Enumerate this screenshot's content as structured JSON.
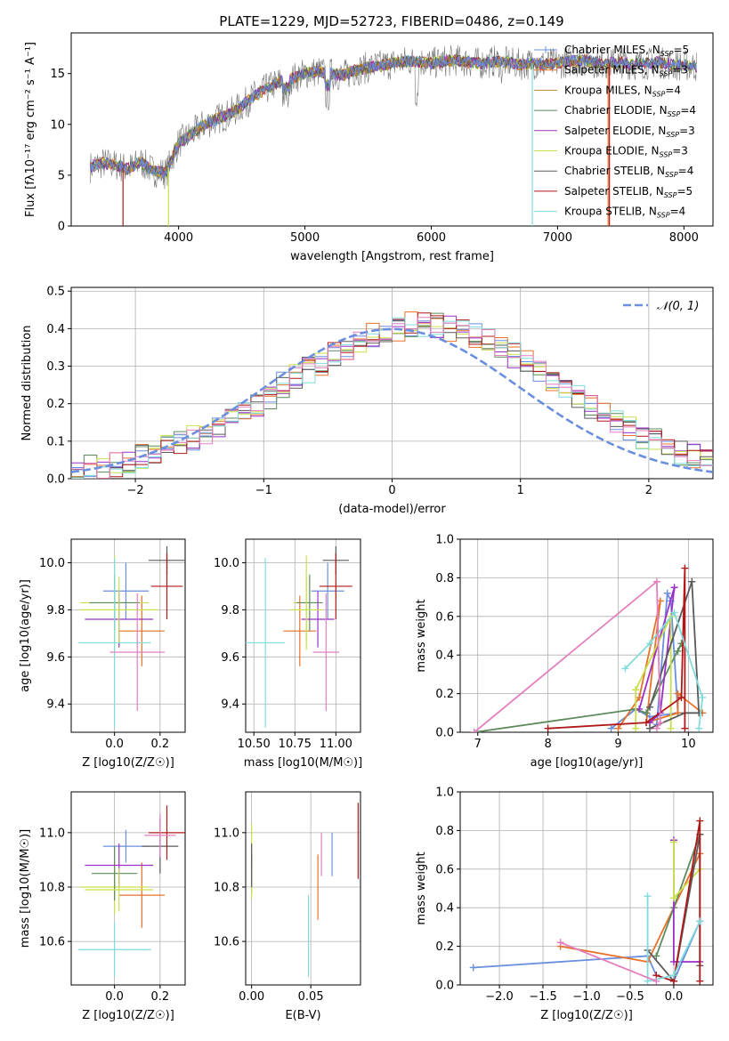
{
  "figure_title": "PLATE=1229, MJD=52723, FIBERID=0486, z=0.149",
  "colors": {
    "model_palette": [
      "#6a8fde",
      "#e8712a",
      "#b7892e",
      "#5d8a5d",
      "#9b30c8",
      "#c8e04a",
      "#5a5a5a",
      "#b01818",
      "#80dcdc"
    ],
    "spectrum_data": "#777777",
    "normal_curve": "#6a8fde",
    "hist_colors": [
      "#6a8fde",
      "#e8712a",
      "#5d8a5d",
      "#9b30c8",
      "#c8e04a",
      "#5a5a5a",
      "#b01818",
      "#80dcdc",
      "#e37fbf"
    ]
  },
  "chart_data": [
    {
      "id": "spectrum",
      "type": "line",
      "title": "PLATE=1229, MJD=52723, FIBERID=0486, z=0.149",
      "xlabel": "wavelength [Angstrom, rest frame]",
      "ylabel": "Flux [fλ10⁻¹⁷ erg cm⁻² s⁻¹ A⁻¹]",
      "xlim": [
        3150,
        8230
      ],
      "ylim": [
        0,
        19
      ],
      "xticks": [
        4000,
        5000,
        6000,
        7000,
        8000
      ],
      "yticks": [
        0,
        5,
        10,
        15
      ],
      "grid": false,
      "legend_position": "top-right",
      "continuum_x": [
        3300,
        3400,
        3500,
        3600,
        3700,
        3800,
        3900,
        4000,
        4100,
        4200,
        4300,
        4400,
        4500,
        4600,
        4700,
        4800,
        4900,
        5000,
        5100,
        5200,
        5300,
        5400,
        5500,
        5600,
        5700,
        5800,
        5900,
        6000,
        6100,
        6200,
        6300,
        6400,
        6500,
        6600,
        6700,
        6800,
        6900,
        7000,
        7100,
        7200,
        7300,
        7400,
        7500,
        7600,
        7700,
        7800,
        7900,
        8000,
        8100
      ],
      "continuum_y": [
        5.8,
        6.2,
        6.0,
        5.6,
        6.3,
        5.4,
        5.2,
        8.2,
        9.0,
        10.0,
        10.5,
        11.0,
        11.8,
        12.8,
        13.5,
        14.2,
        14.5,
        15.0,
        15.2,
        15.0,
        14.8,
        15.3,
        15.6,
        15.8,
        16.0,
        16.2,
        16.2,
        16.0,
        16.2,
        16.3,
        16.1,
        16.0,
        16.2,
        16.1,
        15.9,
        16.0,
        15.9,
        16.0,
        16.2,
        16.3,
        16.1,
        16.0,
        16.1,
        15.9,
        16.0,
        16.1,
        15.9,
        15.8,
        15.7
      ],
      "series": [
        {
          "name": "Chabrier MILES, N_SSP=5",
          "label_main": "Chabrier MILES, N",
          "label_sub": "SSP",
          "label_end": "=5",
          "style": "plus"
        },
        {
          "name": "Salpeter MILES, N_SSP=3",
          "label_main": "Salpeter MILES, N",
          "label_sub": "SSP",
          "label_end": "=3"
        },
        {
          "name": "Kroupa MILES, N_SSP=4",
          "label_main": "Kroupa MILES, N",
          "label_sub": "SSP",
          "label_end": "=4"
        },
        {
          "name": "Chabrier ELODIE, N_SSP=4",
          "label_main": "Chabrier ELODIE, N",
          "label_sub": "SSP",
          "label_end": "=4"
        },
        {
          "name": "Salpeter ELODIE, N_SSP=3",
          "label_main": "Salpeter ELODIE, N",
          "label_sub": "SSP",
          "label_end": "=3"
        },
        {
          "name": "Kroupa ELODIE, N_SSP=3",
          "label_main": "Kroupa ELODIE, N",
          "label_sub": "SSP",
          "label_end": "=3"
        },
        {
          "name": "Chabrier STELIB, N_SSP=4",
          "label_main": "Chabrier STELIB, N",
          "label_sub": "SSP",
          "label_end": "=4"
        },
        {
          "name": "Salpeter STELIB, N_SSP=5",
          "label_main": "Salpeter STELIB, N",
          "label_sub": "SSP",
          "label_end": "=5"
        },
        {
          "name": "Kroupa STELIB, N_SSP=4",
          "label_main": "Kroupa STELIB, N",
          "label_sub": "SSP",
          "label_end": "=4"
        }
      ]
    },
    {
      "id": "residuals",
      "type": "bar",
      "xlabel": "(data-model)/error",
      "ylabel": "Normed distribution",
      "xlim": [
        -2.5,
        2.5
      ],
      "ylim": [
        0,
        0.51
      ],
      "xticks": [
        -2,
        -1,
        0,
        1,
        2
      ],
      "yticks": [
        0.0,
        0.1,
        0.2,
        0.3,
        0.4,
        0.5
      ],
      "grid": true,
      "legend_position": "top-right",
      "legend": {
        "label": "𝒩(0, 1)"
      },
      "bin_edges_start": -2.5,
      "bin_width": 0.1,
      "base_values": [
        0.02,
        0.03,
        0.03,
        0.04,
        0.05,
        0.06,
        0.07,
        0.09,
        0.1,
        0.11,
        0.12,
        0.14,
        0.16,
        0.18,
        0.2,
        0.22,
        0.25,
        0.27,
        0.29,
        0.31,
        0.33,
        0.35,
        0.36,
        0.38,
        0.39,
        0.4,
        0.41,
        0.41,
        0.41,
        0.4,
        0.4,
        0.38,
        0.37,
        0.35,
        0.33,
        0.31,
        0.29,
        0.26,
        0.24,
        0.22,
        0.19,
        0.17,
        0.15,
        0.13,
        0.11,
        0.1,
        0.08,
        0.07,
        0.06,
        0.05
      ],
      "curve": "normal(0,1)"
    },
    {
      "id": "age_vs_Z",
      "type": "scatter",
      "xlabel": "Z [log10(Z/Z☉)]",
      "ylabel": "age  [log10(age/yr)]",
      "xlim": [
        -0.19,
        0.31
      ],
      "ylim": [
        9.28,
        10.1
      ],
      "xticks": [
        0.0,
        0.2
      ],
      "yticks": [
        9.4,
        9.6,
        9.8,
        10.0
      ],
      "grid": true,
      "points": [
        {
          "x": 0.05,
          "y": 9.88,
          "xerr": 0.1,
          "yerr": 0.12,
          "c": 0
        },
        {
          "x": 0.12,
          "y": 9.71,
          "xerr": 0.1,
          "yerr": 0.15,
          "c": 1
        },
        {
          "x": 0.0,
          "y": 9.83,
          "xerr": 0.15,
          "yerr": 0.2,
          "c": 2
        },
        {
          "x": 0.0,
          "y": 9.83,
          "xerr": 0.11,
          "yerr": 0.12,
          "c": 3
        },
        {
          "x": 0.02,
          "y": 9.76,
          "xerr": 0.15,
          "yerr": 0.12,
          "c": 4
        },
        {
          "x": 0.02,
          "y": 9.8,
          "xerr": 0.17,
          "yerr": 0.14,
          "c": 5
        },
        {
          "x": 0.23,
          "y": 10.01,
          "xerr": 0.08,
          "yerr": 0.06,
          "c": 6
        },
        {
          "x": 0.23,
          "y": 9.9,
          "xerr": 0.07,
          "yerr": 0.14,
          "c": 7
        },
        {
          "x": 0.0,
          "y": 9.66,
          "xerr": 0.16,
          "yerr": 0.36,
          "c": 8
        },
        {
          "x": 0.1,
          "y": 9.62,
          "xerr": 0.12,
          "yerr": 0.25,
          "c": 9
        }
      ]
    },
    {
      "id": "age_vs_mass",
      "type": "scatter",
      "xlabel": "mass [log10(M/M☉)]",
      "ylabel": "",
      "xlim": [
        10.45,
        11.15
      ],
      "ylim": [
        9.28,
        10.1
      ],
      "xticks": [
        10.5,
        10.75,
        11.0
      ],
      "yticks": [
        9.4,
        9.6,
        9.8,
        10.0
      ],
      "grid": true,
      "points": [
        {
          "x": 10.95,
          "y": 9.88,
          "xerr": 0.1,
          "yerr": 0.12,
          "c": 0
        },
        {
          "x": 10.78,
          "y": 9.71,
          "xerr": 0.1,
          "yerr": 0.15,
          "c": 1
        },
        {
          "x": 10.82,
          "y": 9.83,
          "xerr": 0.08,
          "yerr": 0.2,
          "c": 2
        },
        {
          "x": 10.84,
          "y": 9.83,
          "xerr": 0.08,
          "yerr": 0.12,
          "c": 3
        },
        {
          "x": 10.89,
          "y": 9.76,
          "xerr": 0.1,
          "yerr": 0.12,
          "c": 4
        },
        {
          "x": 10.82,
          "y": 9.8,
          "xerr": 0.1,
          "yerr": 0.14,
          "c": 5
        },
        {
          "x": 11.0,
          "y": 10.01,
          "xerr": 0.08,
          "yerr": 0.06,
          "c": 6
        },
        {
          "x": 11.0,
          "y": 9.9,
          "xerr": 0.1,
          "yerr": 0.14,
          "c": 7
        },
        {
          "x": 10.57,
          "y": 9.66,
          "xerr": 0.12,
          "yerr": 0.36,
          "c": 8
        },
        {
          "x": 10.94,
          "y": 9.62,
          "xerr": 0.08,
          "yerr": 0.25,
          "c": 9
        }
      ]
    },
    {
      "id": "weight_vs_age",
      "type": "line",
      "xlabel": "age  [log10(age/yr)]",
      "ylabel": "mass weight",
      "xlim": [
        6.75,
        10.35
      ],
      "ylim": [
        0,
        1
      ],
      "xticks": [
        7,
        8,
        9,
        10
      ],
      "yticks": [
        0.0,
        0.2,
        0.4,
        0.6,
        0.8,
        1.0
      ],
      "grid": true,
      "series": [
        {
          "c": 0,
          "x": [
            8.9,
            9.25,
            9.45,
            9.85,
            9.75,
            9.7,
            9.55
          ],
          "y": [
            0.02,
            0.12,
            0.08,
            0.1,
            0.68,
            0.72,
            0.04
          ]
        },
        {
          "c": 1,
          "x": [
            9.0,
            9.3,
            9.6,
            9.4,
            9.85,
            9.85,
            10.2
          ],
          "y": [
            0.02,
            0.18,
            0.68,
            0.05,
            0.1,
            0.2,
            0.1
          ]
        },
        {
          "c": 3,
          "x": [
            6.95,
            9.25,
            9.4,
            9.9,
            9.85
          ],
          "y": [
            0.0,
            0.12,
            0.1,
            0.46,
            0.42
          ]
        },
        {
          "c": 4,
          "x": [
            9.3,
            9.8,
            9.6,
            9.45
          ],
          "y": [
            0.12,
            0.75,
            0.1,
            0.05
          ]
        },
        {
          "c": 5,
          "x": [
            9.25,
            9.25,
            9.75,
            9.75
          ],
          "y": [
            0.02,
            0.22,
            0.6,
            0.02
          ]
        },
        {
          "c": 6,
          "x": [
            9.45,
            9.95,
            10.15,
            10.05,
            9.45
          ],
          "y": [
            0.02,
            0.1,
            0.1,
            0.78,
            0.13
          ]
        },
        {
          "c": 7,
          "x": [
            8.0,
            9.4,
            9.9,
            9.95,
            9.95
          ],
          "y": [
            0.02,
            0.05,
            0.18,
            0.85,
            0.02
          ]
        },
        {
          "c": 8,
          "x": [
            9.1,
            9.45,
            9.8,
            10.2,
            10.15
          ],
          "y": [
            0.33,
            0.46,
            0.62,
            0.18,
            0.02
          ]
        },
        {
          "c": 9,
          "x": [
            6.95,
            9.55,
            9.6,
            9.55
          ],
          "y": [
            0.0,
            0.78,
            0.05,
            0.02
          ]
        }
      ]
    },
    {
      "id": "mass_vs_Z",
      "type": "scatter",
      "xlabel": "Z [log10(Z/Z☉)]",
      "ylabel": "mass [log10(M/M☉)]",
      "xlim": [
        -0.19,
        0.31
      ],
      "ylim": [
        10.44,
        11.15
      ],
      "xticks": [
        0.0,
        0.2
      ],
      "yticks": [
        10.6,
        10.8,
        11.0
      ],
      "grid": true,
      "points": [
        {
          "x": 0.05,
          "y": 10.95,
          "xerr": 0.1,
          "yerr": 0.06,
          "c": 0
        },
        {
          "x": 0.12,
          "y": 10.77,
          "xerr": 0.1,
          "yerr": 0.12,
          "c": 1
        },
        {
          "x": 0.0,
          "y": 10.8,
          "xerr": 0.15,
          "yerr": 0.1,
          "c": 2
        },
        {
          "x": 0.0,
          "y": 10.85,
          "xerr": 0.1,
          "yerr": 0.1,
          "c": 3
        },
        {
          "x": 0.02,
          "y": 10.88,
          "xerr": 0.15,
          "yerr": 0.08,
          "c": 4
        },
        {
          "x": 0.02,
          "y": 10.79,
          "xerr": 0.15,
          "yerr": 0.08,
          "c": 5
        },
        {
          "x": 0.2,
          "y": 10.95,
          "xerr": 0.08,
          "yerr": 0.1,
          "c": 6
        },
        {
          "x": 0.23,
          "y": 11.0,
          "xerr": 0.08,
          "yerr": 0.1,
          "c": 7
        },
        {
          "x": 0.0,
          "y": 10.57,
          "xerr": 0.16,
          "yerr": 0.1,
          "c": 8
        },
        {
          "x": 0.2,
          "y": 10.99,
          "xerr": 0.07,
          "yerr": 0.08,
          "c": 9
        }
      ]
    },
    {
      "id": "mass_vs_EBV",
      "type": "scatter",
      "xlabel": "E(B-V)",
      "ylabel": "",
      "xlim": [
        -0.005,
        0.092
      ],
      "ylim": [
        10.44,
        11.15
      ],
      "xticks": [
        0.0,
        0.05
      ],
      "yticks": [
        10.6,
        10.8,
        11.0
      ],
      "grid": true,
      "points": [
        {
          "x": 0.068,
          "y": 10.92,
          "yerr": 0.08,
          "c": 0
        },
        {
          "x": 0.056,
          "y": 10.8,
          "yerr": 0.12,
          "c": 1
        },
        {
          "x": 0.0,
          "y": 10.95,
          "yerr": 0.08,
          "c": 2
        },
        {
          "x": 0.0,
          "y": 10.85,
          "yerr": 0.07,
          "c": 3
        },
        {
          "x": 0.0,
          "y": 10.82,
          "yerr": 0.06,
          "c": 5
        },
        {
          "x": 0.0,
          "y": 10.88,
          "yerr": 0.08,
          "c": 6
        },
        {
          "x": 0.09,
          "y": 10.97,
          "yerr": 0.14,
          "c": 7
        },
        {
          "x": 0.048,
          "y": 10.62,
          "yerr": 0.15,
          "c": 8
        },
        {
          "x": 0.059,
          "y": 10.92,
          "yerr": 0.08,
          "c": 9
        }
      ]
    },
    {
      "id": "weight_vs_Z",
      "type": "line",
      "xlabel": "Z [log10(Z/Z☉)]",
      "ylabel": "mass weight",
      "xlim": [
        -2.45,
        0.45
      ],
      "ylim": [
        0,
        1
      ],
      "xticks": [
        -2.0,
        -1.5,
        -1.0,
        -0.5,
        0.0
      ],
      "yticks": [
        0.0,
        0.2,
        0.4,
        0.6,
        0.8,
        1.0
      ],
      "grid": true,
      "series": [
        {
          "c": 0,
          "x": [
            -2.3,
            -0.3,
            -0.2,
            0.0,
            0.3
          ],
          "y": [
            0.09,
            0.15,
            0.05,
            0.02,
            0.33
          ]
        },
        {
          "c": 1,
          "x": [
            -1.3,
            -0.3,
            0.0,
            0.3
          ],
          "y": [
            0.2,
            0.12,
            0.4,
            0.68
          ]
        },
        {
          "c": 3,
          "x": [
            -0.2,
            0.0,
            0.3
          ],
          "y": [
            0.15,
            0.4,
            0.78
          ]
        },
        {
          "c": 4,
          "x": [
            0.0,
            0.0,
            0.3
          ],
          "y": [
            0.75,
            0.12,
            0.12
          ]
        },
        {
          "c": 5,
          "x": [
            0.0,
            0.0,
            0.3
          ],
          "y": [
            0.74,
            0.45,
            0.6
          ]
        },
        {
          "c": 6,
          "x": [
            -0.3,
            0.0,
            0.3,
            0.3
          ],
          "y": [
            0.18,
            0.02,
            0.78,
            0.1
          ]
        },
        {
          "c": 7,
          "x": [
            -0.2,
            0.0,
            0.3,
            0.3
          ],
          "y": [
            0.05,
            0.02,
            0.85,
            0.02
          ]
        },
        {
          "c": 8,
          "x": [
            -0.3,
            -0.3,
            0.0,
            0.3
          ],
          "y": [
            0.46,
            0.02,
            0.05,
            0.33
          ]
        },
        {
          "c": 9,
          "x": [
            -1.3,
            -0.2
          ],
          "y": [
            0.22,
            0.02
          ]
        }
      ]
    }
  ]
}
